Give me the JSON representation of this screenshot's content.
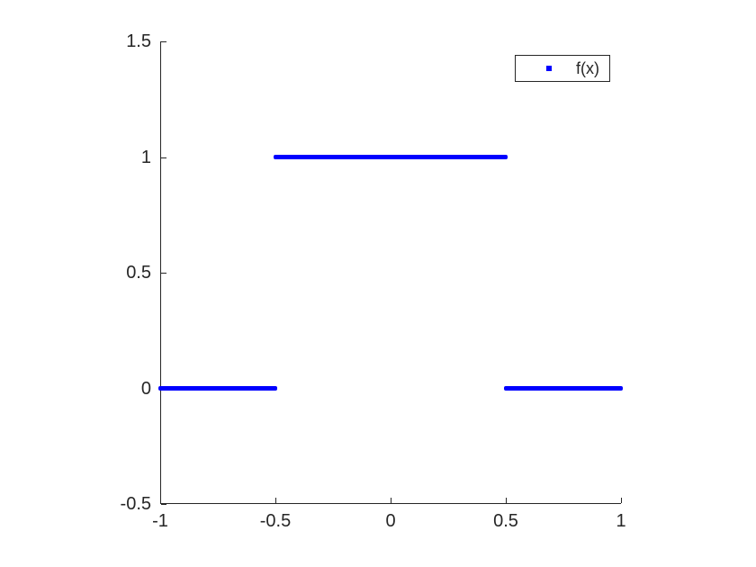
{
  "figure": {
    "background": "#FFFFFF"
  },
  "chart_data": {
    "type": "scatter",
    "title": "",
    "xlabel": "",
    "ylabel": "",
    "xlim": [
      -1,
      1
    ],
    "ylim": [
      -0.5,
      1.5
    ],
    "grid": false,
    "box": false,
    "axis_color": "#262626",
    "xticks": [
      {
        "value": -1,
        "label": "-1"
      },
      {
        "value": -0.5,
        "label": "-0.5"
      },
      {
        "value": 0,
        "label": "0"
      },
      {
        "value": 0.5,
        "label": "0.5"
      },
      {
        "value": 1,
        "label": "1"
      }
    ],
    "yticks": [
      {
        "value": -0.5,
        "label": "-0.5"
      },
      {
        "value": 0,
        "label": "0"
      },
      {
        "value": 0.5,
        "label": "0.5"
      },
      {
        "value": 1,
        "label": "1"
      },
      {
        "value": 1.5,
        "label": "1.5"
      }
    ],
    "series": [
      {
        "name": "f(x)",
        "color": "#0000FF",
        "marker": "square",
        "segments": [
          {
            "y": 0,
            "x_start": -1,
            "x_end": -0.5
          },
          {
            "y": 1,
            "x_start": -0.5,
            "x_end": 0.5
          },
          {
            "y": 0,
            "x_start": 0.5,
            "x_end": 1
          }
        ]
      }
    ],
    "legend": {
      "position": "top-right",
      "border_color": "#262626",
      "background": "#FFFFFF",
      "entries": [
        {
          "label": "f(x)",
          "marker_color": "#0000FF",
          "marker": "square"
        }
      ]
    }
  }
}
